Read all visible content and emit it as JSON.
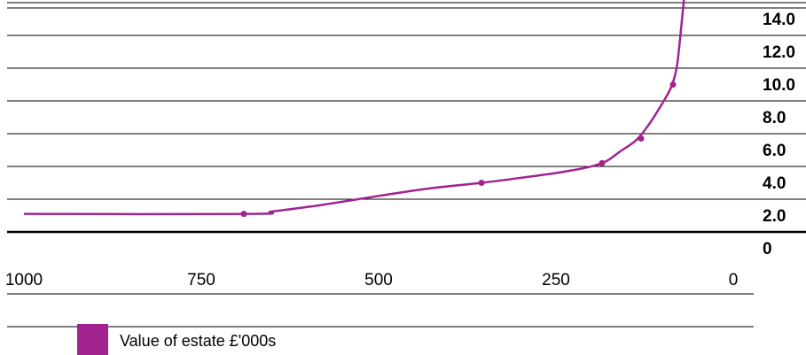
{
  "chart_data": {
    "type": "line",
    "x_reversed": true,
    "xlim": [
      1000,
      0
    ],
    "ylim": [
      0,
      14.0
    ],
    "x_ticks": [
      "1000",
      "750",
      "500",
      "250",
      "0"
    ],
    "y_ticks": [
      "0",
      "2.0",
      "4.0",
      "6.0",
      "8.0",
      "10.0",
      "12.0",
      "14.0"
    ],
    "grid": true,
    "series": [
      {
        "name": "Value of estate £'000s",
        "color": "#a0238f",
        "curve_points": [
          {
            "x": 1000,
            "y": 1.1
          },
          {
            "x": 680,
            "y": 1.1
          },
          {
            "x": 650,
            "y": 1.25
          },
          {
            "x": 580,
            "y": 1.65
          },
          {
            "x": 500,
            "y": 2.2
          },
          {
            "x": 430,
            "y": 2.65
          },
          {
            "x": 355,
            "y": 3.0
          },
          {
            "x": 300,
            "y": 3.3
          },
          {
            "x": 250,
            "y": 3.6
          },
          {
            "x": 205,
            "y": 3.95
          },
          {
            "x": 180,
            "y": 4.3
          },
          {
            "x": 160,
            "y": 4.9
          },
          {
            "x": 137,
            "y": 5.6
          },
          {
            "x": 120,
            "y": 6.5
          },
          {
            "x": 105,
            "y": 7.5
          },
          {
            "x": 88,
            "y": 8.8
          },
          {
            "x": 80,
            "y": 10.0
          },
          {
            "x": 75,
            "y": 11.8
          },
          {
            "x": 70,
            "y": 14.0
          },
          {
            "x": 67,
            "y": 15.0
          }
        ],
        "marked_points": [
          {
            "x": 690,
            "y": 1.1
          },
          {
            "x": 355,
            "y": 3.0
          },
          {
            "x": 185,
            "y": 4.2
          },
          {
            "x": 130,
            "y": 5.7
          },
          {
            "x": 85,
            "y": 9.0
          }
        ]
      }
    ]
  },
  "legend": {
    "label": "Value of estate £'000s",
    "color": "#a0238f",
    "placement": "bottom-left"
  }
}
